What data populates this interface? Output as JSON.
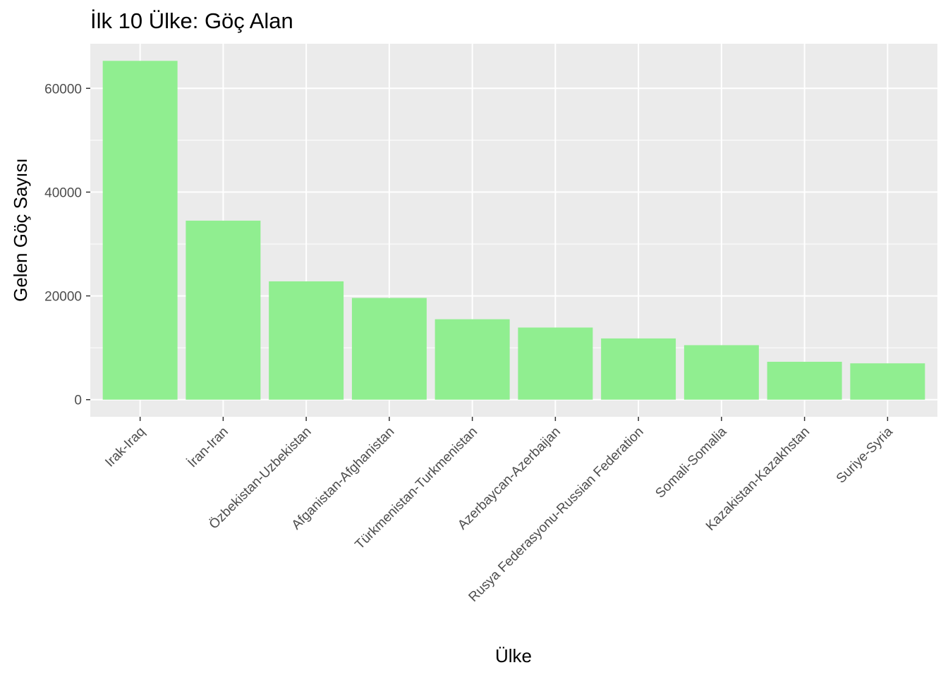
{
  "chart_data": {
    "type": "bar",
    "title": "İlk 10 Ülke: Göç Alan",
    "xlabel": "Ülke",
    "ylabel": "Gelen Göç Sayısı",
    "categories": [
      "Irak-Iraq",
      "İran-Iran",
      "Özbekistan-Uzbekistan",
      "Afganistan-Afghanistan",
      "Türkmenistan-Turkmenistan",
      "Azerbaycan-Azerbaijan",
      "Rusya Federasyonu-Russian Federation",
      "Somali-Somalia",
      "Kazakistan-Kazakhstan",
      "Suriye-Syria"
    ],
    "values": [
      65300,
      34500,
      22800,
      19600,
      15500,
      13900,
      11800,
      10500,
      7300,
      7000
    ],
    "ylim": [
      -3300,
      68600
    ],
    "yticks": [
      0,
      20000,
      40000,
      60000
    ],
    "ytick_labels": [
      "0",
      "20000",
      "40000",
      "60000"
    ],
    "grid": true,
    "colors": {
      "bar": "#90ee90",
      "panel": "#ebebeb",
      "grid": "#ffffff",
      "tick": "#333333"
    }
  }
}
